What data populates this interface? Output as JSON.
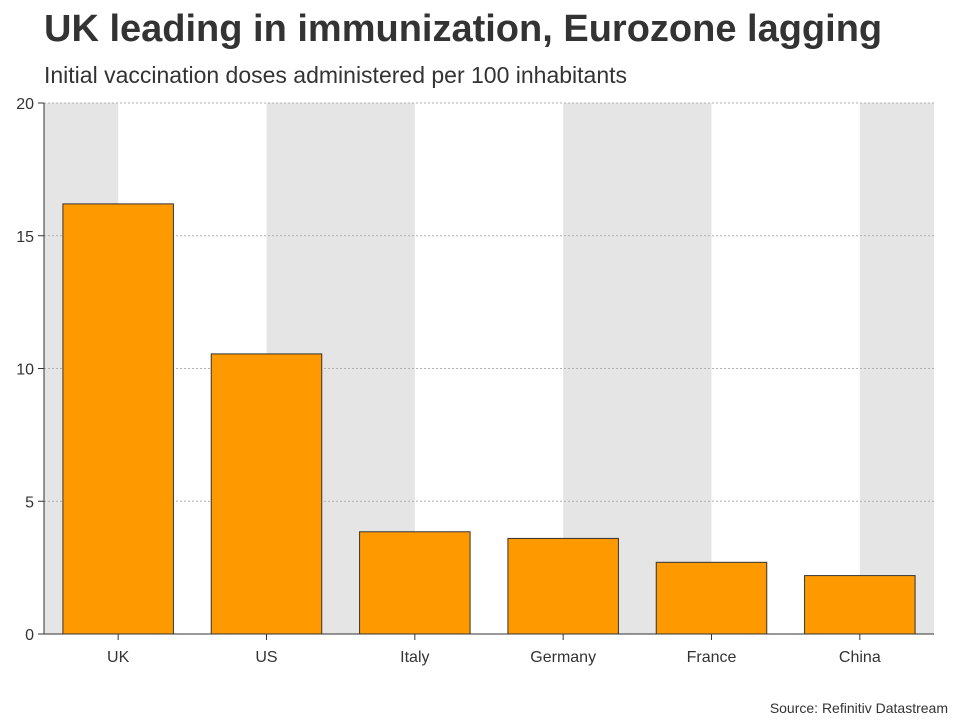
{
  "chart_data": {
    "type": "bar",
    "title": "UK leading in immunization, Eurozone lagging",
    "subtitle": "Initial vaccination doses administered per 100 inhabitants",
    "categories": [
      "UK",
      "US",
      "Italy",
      "Germany",
      "France",
      "China"
    ],
    "values": [
      16.2,
      10.55,
      3.85,
      3.6,
      2.7,
      2.2
    ],
    "xlabel": "",
    "ylabel": "",
    "ylim": [
      0,
      20
    ],
    "yticks": [
      0,
      5,
      10,
      15,
      20
    ],
    "grid": true,
    "source": "Source: Refinitiv Datastream"
  },
  "colors": {
    "bar": "#ff9900",
    "band": "#e5e5e5",
    "grid": "#b0b0b0",
    "text": "#333333"
  }
}
